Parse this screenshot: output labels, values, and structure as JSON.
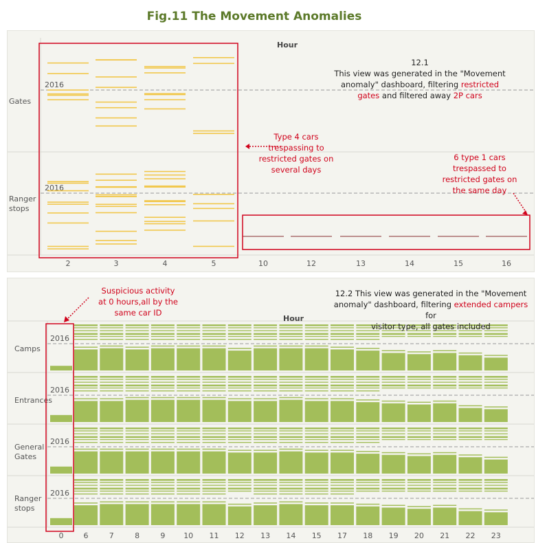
{
  "figure_title": "Fig.11 The Movement Anomalies",
  "colors": {
    "top_lines": "#f1c74b",
    "bottom_bars": "#a3be5a",
    "annotation": "#d0021b",
    "panel_bg": "#f4f4ef"
  },
  "note1": {
    "number": "12.1",
    "line1": "This view was generated in the \"Movement",
    "line2a": "anomaly\" dashboard, filtering ",
    "line2b": "restricted",
    "line3a": "gates",
    "line3b": " and filtered away ",
    "line3c": "2P cars"
  },
  "note2": {
    "line1": "12.2 This view was generated in the \"Movement",
    "line2a": "anomaly\" dashboard, filtering ",
    "line2b": "extended campers",
    "line2c": " for",
    "line3": "visitor type, all gates included"
  },
  "annotations": {
    "a1": [
      "Type 4 cars",
      "trespassing to",
      "restricted gates on",
      "several days"
    ],
    "a2": [
      "6 type 1 cars",
      "trespassed to",
      "restricted gates on",
      "the same day"
    ],
    "a3": [
      "Suspicious activity",
      "at 0 hours,all by the",
      "same car ID"
    ]
  },
  "chart_data": [
    {
      "type": "bar",
      "title": "",
      "xlabel": "Hour",
      "categories": [
        "2",
        "3",
        "4",
        "5",
        "10",
        "12",
        "13",
        "14",
        "15",
        "16"
      ],
      "rows": [
        "Gates",
        "Ranger stops"
      ],
      "year_label": "2016",
      "series": [
        {
          "name": "Gates",
          "stripe_counts": [
            6,
            8,
            7,
            4,
            0,
            0,
            0,
            0,
            0,
            0
          ]
        },
        {
          "name": "Ranger stops",
          "stripe_counts": [
            9,
            13,
            12,
            5,
            1,
            1,
            1,
            1,
            1,
            1
          ]
        }
      ],
      "grid": false
    },
    {
      "type": "bar",
      "title": "",
      "xlabel": "Hour",
      "categories": [
        "0",
        "6",
        "7",
        "8",
        "9",
        "10",
        "11",
        "12",
        "13",
        "14",
        "15",
        "17",
        "18",
        "19",
        "20",
        "21",
        "22",
        "23"
      ],
      "rows": [
        "Camps",
        "Entrances",
        "General Gates",
        "Ranger stops"
      ],
      "year_label": "2016",
      "series": [
        {
          "name": "Camps",
          "values": [
            0.2,
            0.9,
            0.95,
            0.9,
            0.95,
            0.95,
            0.95,
            0.85,
            0.95,
            0.95,
            0.95,
            0.9,
            0.85,
            0.75,
            0.7,
            0.75,
            0.65,
            0.55
          ]
        },
        {
          "name": "Entrances",
          "values": [
            0.3,
            0.9,
            0.9,
            0.95,
            0.95,
            0.95,
            0.95,
            0.9,
            0.9,
            0.95,
            0.9,
            0.9,
            0.85,
            0.8,
            0.75,
            0.8,
            0.6,
            0.55
          ]
        },
        {
          "name": "General Gates",
          "values": [
            0.3,
            0.95,
            0.95,
            0.95,
            0.95,
            0.95,
            0.95,
            0.9,
            0.9,
            0.95,
            0.9,
            0.9,
            0.85,
            0.8,
            0.75,
            0.8,
            0.7,
            0.6
          ]
        },
        {
          "name": "Ranger stops",
          "values": [
            0.3,
            0.85,
            0.9,
            0.9,
            0.9,
            0.9,
            0.9,
            0.8,
            0.85,
            0.9,
            0.85,
            0.85,
            0.8,
            0.75,
            0.7,
            0.75,
            0.6,
            0.55
          ]
        }
      ],
      "grid": false
    }
  ]
}
